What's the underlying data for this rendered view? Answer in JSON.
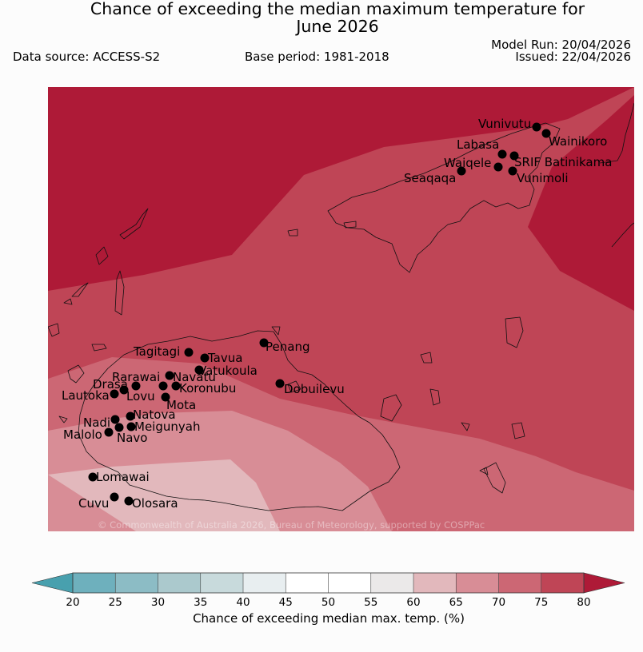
{
  "title_line1": "Chance of exceeding the median maximum temperature for",
  "title_line2": "June 2026",
  "data_source": "Data source: ACCESS-S2",
  "base_period": "Base period: 1981-2018",
  "model_run": "Model Run: 20/04/2026",
  "issued": "Issued: 22/04/2026",
  "copyright": "© Commonwealth of Australia 2026, Bureau of Meteorology, supported by COSPPac",
  "colorbar": {
    "label": "Chance of exceeding median max. temp. (%)",
    "ticks": [
      "20",
      "25",
      "30",
      "35",
      "40",
      "45",
      "50",
      "55",
      "60",
      "65",
      "70",
      "75",
      "80"
    ],
    "colors": [
      "#6eb0bd",
      "#8cbcc5",
      "#abc9cd",
      "#c8dadc",
      "#e8eef0",
      "#ffffff",
      "#ffffff",
      "#ebe9e9",
      "#e2b8bc",
      "#d88d96",
      "#cc6774",
      "#bf4556"
    ],
    "under_color": "#48a0ae",
    "over_color": "#ae1a37"
  },
  "stations": [
    {
      "name": "Vunivutu"
    },
    {
      "name": "Wainikoro"
    },
    {
      "name": "Labasa"
    },
    {
      "name": "Waiqele"
    },
    {
      "name": "SRIF Batinikama"
    },
    {
      "name": "Seaqaqa"
    },
    {
      "name": "Vunimoli"
    },
    {
      "name": "Tagitagi"
    },
    {
      "name": "Tavua"
    },
    {
      "name": "Penang"
    },
    {
      "name": "Vatukoula"
    },
    {
      "name": "Rarawai"
    },
    {
      "name": "Navatu"
    },
    {
      "name": "Drasa"
    },
    {
      "name": "Koronubu"
    },
    {
      "name": "Lautoka"
    },
    {
      "name": "Lovu"
    },
    {
      "name": "Dobuilevu"
    },
    {
      "name": "Mota"
    },
    {
      "name": "Natova"
    },
    {
      "name": "Nadi"
    },
    {
      "name": "Meigunyah"
    },
    {
      "name": "Malolo"
    },
    {
      "name": "Navo"
    },
    {
      "name": "Lomawai"
    },
    {
      "name": "Cuvu"
    },
    {
      "name": "Olosara"
    }
  ]
}
